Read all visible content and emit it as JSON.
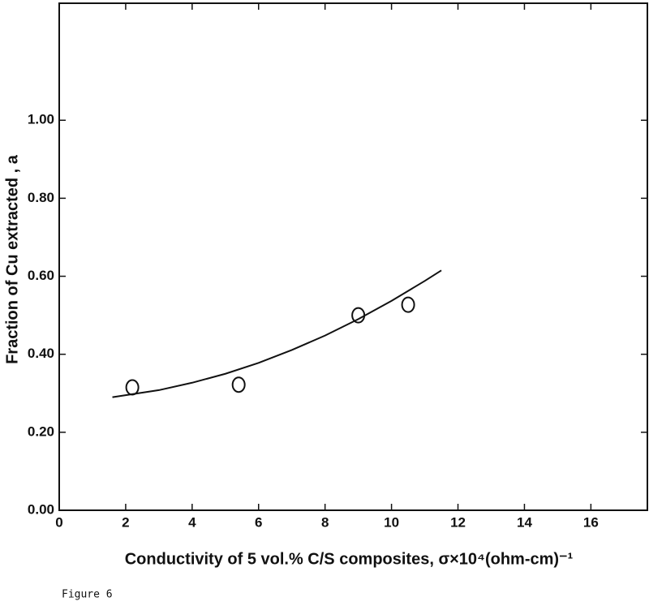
{
  "chart_data": {
    "type": "scatter",
    "x_label": "Conductivity of  5 vol.% C/S composites, σ×10⁴(ohm-cm)⁻¹",
    "y_label": "Fraction of Cu extracted , a",
    "caption": "Figure 6",
    "xlim": [
      0,
      17.7
    ],
    "ylim": [
      0,
      1.3
    ],
    "xticks": [
      0,
      2,
      4,
      6,
      8,
      10,
      12,
      14,
      16
    ],
    "yticks": [
      {
        "value": 0,
        "label": "0.00"
      },
      {
        "value": 0.2,
        "label": "0.20"
      },
      {
        "value": 0.4,
        "label": "0.40"
      },
      {
        "value": 0.6,
        "label": "0.60"
      },
      {
        "value": 0.8,
        "label": "0.80"
      },
      {
        "value": 1.0,
        "label": "1.00"
      }
    ],
    "color": "#111111",
    "series": [
      {
        "style": "marker",
        "x": [
          2.2,
          5.4,
          9.0,
          10.5
        ],
        "values": [
          0.315,
          0.322,
          0.5,
          0.527
        ]
      },
      {
        "style": "line",
        "x": [
          1.6,
          3,
          4,
          5,
          6,
          7,
          8,
          9,
          10,
          11,
          11.5
        ],
        "values": [
          0.29,
          0.308,
          0.327,
          0.35,
          0.378,
          0.411,
          0.448,
          0.49,
          0.537,
          0.588,
          0.615
        ]
      }
    ]
  }
}
